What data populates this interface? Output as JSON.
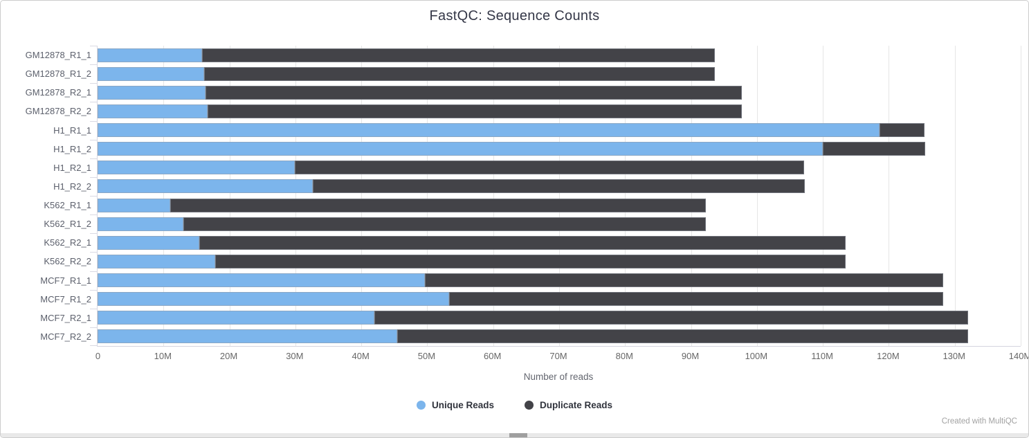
{
  "title": "FastQC: Sequence Counts",
  "footer": {
    "credit": "Created with MultiQC"
  },
  "chart_data": {
    "type": "bar",
    "orientation": "horizontal",
    "stacked": true,
    "title": "FastQC: Sequence Counts",
    "xlabel": "Number of reads",
    "ylabel": "",
    "xlim": [
      0,
      140000000
    ],
    "x_tick_labels": [
      "0",
      "10M",
      "20M",
      "30M",
      "40M",
      "50M",
      "60M",
      "70M",
      "80M",
      "90M",
      "100M",
      "110M",
      "120M",
      "130M",
      "140M"
    ],
    "grid": "vertical",
    "legend_position": "bottom",
    "value_unit": "million reads",
    "categories": [
      "GM12878_R1_1",
      "GM12878_R1_2",
      "GM12878_R2_1",
      "GM12878_R2_2",
      "H1_R1_1",
      "H1_R1_2",
      "H1_R2_1",
      "H1_R2_2",
      "K562_R1_1",
      "K562_R1_2",
      "K562_R2_1",
      "K562_R2_2",
      "MCF7_R1_1",
      "MCF7_R1_2",
      "MCF7_R2_1",
      "MCF7_R2_2"
    ],
    "series": [
      {
        "name": "Unique Reads",
        "color": "#7cb5ec",
        "values_millions": [
          15.8,
          16.2,
          16.4,
          16.7,
          118.6,
          110.0,
          29.9,
          32.6,
          11.0,
          13.0,
          15.4,
          17.8,
          49.6,
          53.3,
          42.0,
          45.4
        ]
      },
      {
        "name": "Duplicate Reads",
        "color": "#434348",
        "values_millions": [
          77.8,
          77.4,
          81.3,
          81.0,
          6.8,
          15.5,
          77.3,
          74.7,
          81.3,
          79.3,
          98.0,
          95.6,
          78.6,
          74.9,
          90.0,
          86.6
        ]
      }
    ],
    "totals_millions": [
      93.6,
      93.6,
      97.7,
      97.7,
      125.4,
      125.5,
      107.2,
      107.3,
      92.3,
      92.3,
      113.4,
      113.4,
      128.2,
      128.2,
      132.0,
      132.0
    ]
  }
}
